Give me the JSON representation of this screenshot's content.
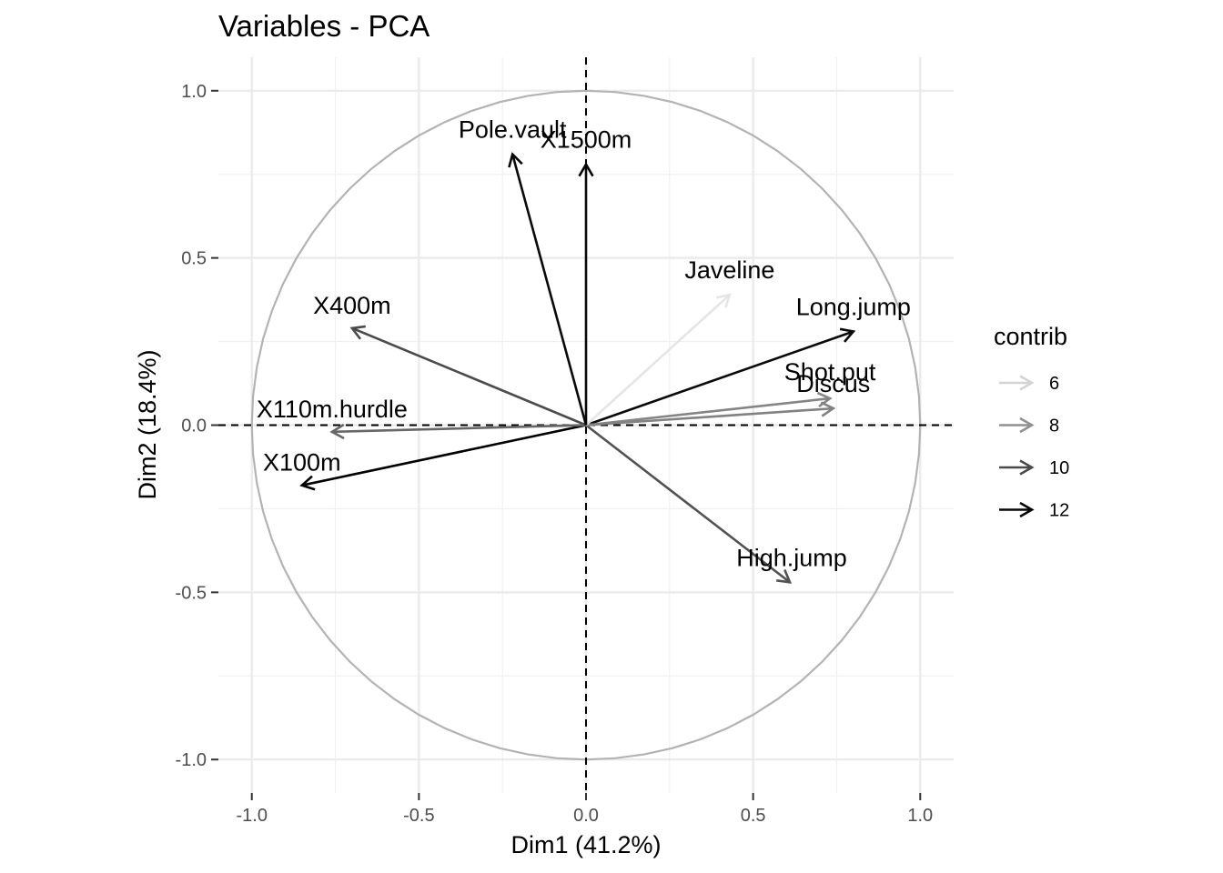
{
  "chart_data": {
    "type": "vector-biplot",
    "title": "Variables - PCA",
    "xlabel": "Dim1 (41.2%)",
    "ylabel": "Dim2 (18.4%)",
    "xlim": [
      -1.1,
      1.1
    ],
    "ylim": [
      -1.1,
      1.1
    ],
    "x_ticks": [
      -1.0,
      -0.5,
      0.0,
      0.5,
      1.0
    ],
    "y_ticks": [
      -1.0,
      -0.5,
      0.0,
      0.5,
      1.0
    ],
    "x_tick_labels": [
      "-1.0",
      "-0.5",
      "0.0",
      "0.5",
      "1.0"
    ],
    "y_tick_labels": [
      "-1.0",
      "-0.5",
      "0.0",
      "0.5",
      "1.0"
    ],
    "grid": true,
    "correlation_circle": true,
    "reference_lines": [
      0,
      0
    ],
    "variables": [
      {
        "name": "X100m",
        "x": -0.85,
        "y": -0.18,
        "contrib": 12.2
      },
      {
        "name": "Long.jump",
        "x": 0.8,
        "y": 0.28,
        "contrib": 11.9
      },
      {
        "name": "Shot.put",
        "x": 0.73,
        "y": 0.08,
        "contrib": 8.3
      },
      {
        "name": "High.jump",
        "x": 0.61,
        "y": -0.47,
        "contrib": 9.8
      },
      {
        "name": "X400m",
        "x": -0.7,
        "y": 0.29,
        "contrib": 10.0
      },
      {
        "name": "X110m.hurdle",
        "x": -0.76,
        "y": -0.02,
        "contrib": 9.2
      },
      {
        "name": "Discus",
        "x": 0.74,
        "y": 0.05,
        "contrib": 8.4
      },
      {
        "name": "Pole.vault",
        "x": -0.22,
        "y": 0.81,
        "contrib": 11.9
      },
      {
        "name": "Javeline",
        "x": 0.43,
        "y": 0.39,
        "contrib": 5.5
      },
      {
        "name": "X1500m",
        "x": 0.0,
        "y": 0.78,
        "contrib": 12.0
      }
    ],
    "legend": {
      "title": "contrib",
      "placement": "right",
      "entries": [
        {
          "label": "6",
          "value": 6
        },
        {
          "label": "8",
          "value": 8
        },
        {
          "label": "10",
          "value": 10
        },
        {
          "label": "12",
          "value": 12
        }
      ]
    },
    "contrib_color_scale": {
      "low": 5.5,
      "high": 12.2,
      "low_color": "#e5e5e5",
      "high_color": "#000000"
    }
  }
}
